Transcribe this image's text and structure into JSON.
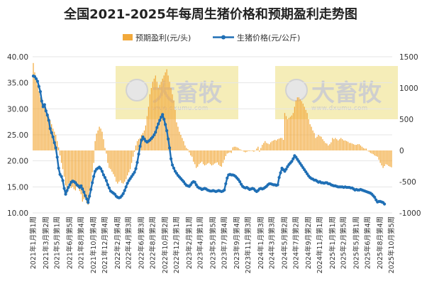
{
  "chart_data": {
    "type": "bar+line",
    "title": "全国2021-2025年每周生猪价格和预期盈利走势图",
    "colors": {
      "bar": "#F2A93B",
      "line": "#1F6FB5",
      "watermark_bg": "#F5EDB8",
      "grid": "#E6E6E6"
    },
    "watermarks": [
      {
        "name": "大畜牧",
        "url": "www.dxumu.com"
      },
      {
        "name": "大畜牧",
        "url": "www.dxumu.com"
      }
    ],
    "legend": {
      "position": "top-center"
    },
    "y_left": {
      "ylim": [
        10,
        40
      ],
      "ticks": [
        "10.00",
        "15.00",
        "20.00",
        "25.00",
        "30.00",
        "35.00",
        "40.00"
      ]
    },
    "y_right": {
      "ylim": [
        -1000,
        1500
      ],
      "ticks": [
        "-1000",
        "-500",
        "0",
        "500",
        "1000",
        "1500"
      ]
    },
    "x_tick_labels": [
      "2021年1月第1周",
      "2021年3月第2周",
      "2021年5月第1周",
      "2021年6月第5周",
      "2021年8月第4周",
      "2021年10月第4周",
      "2021年12月第4周",
      "2022年2月第4周",
      "2022年4月第3周",
      "2022年6月第3周",
      "2022年8月第2周",
      "2022年10月第2周",
      "2022年12月第1周",
      "2023年2月第1周",
      "2023年4月第1周",
      "2023年5月第5周",
      "2023年7月第4周",
      "2023年9月第4周",
      "2023年11月第3周",
      "2024年1月第3周",
      "2024年3月第3周",
      "2024年5月第2周",
      "2024年7月第2周",
      "2024年9月第2周",
      "2024年11月第1周",
      "2025年1月第1周",
      "2025年2月第5周",
      "2025年5月第1周",
      "2025年6月第4周",
      "2025年8月第4周",
      "2025年10月第5周"
    ],
    "series": [
      {
        "name": "预期盈利(元/头)",
        "type": "bar",
        "axis": "right",
        "values": [
          1400,
          1250,
          1150,
          1050,
          950,
          850,
          800,
          750,
          700,
          650,
          600,
          550,
          480,
          420,
          350,
          300,
          250,
          150,
          50,
          -80,
          -200,
          -300,
          -420,
          -560,
          -680,
          -530,
          -560,
          -600,
          -580,
          -620,
          -640,
          -580,
          -600,
          -650,
          -700,
          -820,
          -780,
          -760,
          -840,
          -870,
          -650,
          -500,
          -350,
          -200,
          150,
          270,
          320,
          380,
          350,
          300,
          180,
          40,
          -50,
          -200,
          -280,
          -300,
          -340,
          -380,
          -420,
          -500,
          -530,
          -500,
          -480,
          -520,
          -530,
          -500,
          -460,
          -400,
          -350,
          -300,
          -200,
          -100,
          -20,
          80,
          150,
          180,
          200,
          250,
          280,
          320,
          400,
          550,
          700,
          900,
          1000,
          1100,
          1150,
          1200,
          1100,
          1000,
          1050,
          1100,
          1150,
          1200,
          1250,
          1300,
          1200,
          1100,
          1000,
          900,
          800,
          650,
          450,
          380,
          300,
          250,
          200,
          150,
          80,
          40,
          20,
          -30,
          -80,
          -100,
          -180,
          -220,
          -280,
          -260,
          -220,
          -200,
          -180,
          -220,
          -240,
          -230,
          -210,
          -200,
          -220,
          -240,
          -230,
          -210,
          -200,
          -190,
          -230,
          -250,
          -260,
          -200,
          -150,
          -90,
          -50,
          -40,
          -30,
          -40,
          50,
          60,
          60,
          50,
          40,
          20,
          10,
          0,
          -20,
          -30,
          -20,
          -10,
          -10,
          0,
          -10,
          -20,
          0,
          30,
          60,
          -20,
          40,
          90,
          120,
          150,
          120,
          110,
          100,
          130,
          150,
          160,
          170,
          160,
          180,
          190,
          200,
          200,
          170,
          600,
          550,
          500,
          520,
          540,
          560,
          600,
          700,
          800,
          850,
          850,
          820,
          790,
          750,
          700,
          650,
          600,
          500,
          420,
          380,
          320,
          280,
          200,
          220,
          250,
          230,
          220,
          180,
          150,
          120,
          110,
          80,
          100,
          130,
          200,
          180,
          200,
          180,
          160,
          180,
          200,
          180,
          160,
          160,
          150,
          140,
          120,
          120,
          110,
          100,
          90,
          90,
          100,
          100,
          80,
          60,
          40,
          30,
          30,
          0,
          -20,
          -40,
          -50,
          -60,
          -80,
          -90,
          -100,
          -150,
          -200,
          -240,
          -280,
          -250,
          -220,
          -230,
          -250,
          -260,
          -270
        ]
      },
      {
        "name": "生猪价格(元/公斤)",
        "type": "line",
        "axis": "left",
        "values": [
          36.3,
          36.2,
          35.8,
          35.3,
          34.3,
          33.3,
          31.5,
          30.4,
          30.8,
          29.6,
          28.8,
          27.8,
          26.2,
          25.4,
          24.6,
          23.5,
          22.5,
          20.7,
          18.6,
          17.4,
          17.0,
          16.2,
          14.7,
          13.6,
          14.3,
          14.9,
          15.4,
          15.9,
          16.1,
          16.0,
          15.8,
          15.4,
          15.2,
          14.9,
          15.2,
          14.6,
          14.0,
          13.3,
          12.7,
          12.0,
          13.2,
          14.5,
          15.8,
          17.0,
          18.0,
          18.4,
          18.6,
          18.8,
          18.5,
          18.0,
          17.3,
          16.8,
          16.2,
          15.4,
          14.8,
          14.2,
          14.0,
          13.8,
          13.6,
          13.2,
          13.0,
          12.9,
          13.0,
          13.3,
          13.7,
          14.3,
          15.0,
          15.7,
          16.2,
          16.6,
          17.0,
          17.4,
          17.8,
          18.5,
          19.7,
          21.3,
          22.8,
          24.0,
          24.6,
          24.2,
          23.8,
          23.6,
          23.8,
          24.0,
          24.3,
          24.6,
          25.0,
          25.5,
          26.4,
          27.1,
          27.8,
          28.4,
          28.9,
          28.0,
          27.0,
          25.8,
          24.2,
          22.5,
          20.4,
          19.2,
          18.6,
          18.0,
          17.6,
          17.2,
          16.9,
          16.6,
          16.3,
          16.0,
          15.6,
          15.3,
          15.2,
          15.1,
          15.4,
          15.8,
          16.0,
          15.9,
          15.4,
          15.0,
          14.8,
          14.7,
          14.5,
          14.6,
          14.7,
          14.6,
          14.4,
          14.3,
          14.2,
          14.2,
          14.3,
          14.2,
          14.1,
          14.2,
          14.3,
          14.2,
          14.1,
          14.2,
          14.4,
          15.6,
          16.7,
          17.3,
          17.4,
          17.3,
          17.3,
          17.2,
          17.0,
          16.7,
          16.4,
          16.0,
          15.5,
          15.1,
          14.9,
          14.8,
          14.9,
          14.7,
          14.5,
          14.6,
          14.7,
          14.6,
          14.3,
          14.1,
          14.3,
          14.6,
          14.7,
          14.6,
          14.7,
          14.9,
          15.1,
          15.4,
          15.6,
          15.6,
          15.5,
          15.4,
          15.4,
          15.3,
          15.4,
          16.8,
          17.7,
          18.6,
          18.3,
          18.0,
          18.4,
          18.9,
          19.3,
          19.6,
          19.9,
          20.4,
          21.0,
          20.7,
          20.3,
          19.9,
          19.5,
          19.1,
          18.7,
          18.3,
          17.9,
          17.5,
          17.1,
          16.8,
          16.6,
          16.5,
          16.3,
          16.3,
          16.1,
          15.9,
          16.0,
          15.8,
          15.8,
          15.7,
          15.8,
          15.8,
          15.6,
          15.6,
          15.4,
          15.3,
          15.2,
          15.2,
          15.1,
          15.0,
          15.0,
          15.0,
          15.0,
          14.9,
          15.0,
          14.9,
          14.9,
          14.9,
          14.8,
          14.8,
          14.6,
          14.4,
          14.5,
          14.4,
          14.4,
          14.5,
          14.4,
          14.3,
          14.2,
          14.1,
          14.0,
          13.9,
          13.8,
          13.6,
          13.3,
          13.0,
          12.5,
          12.1,
          12.2,
          12.2,
          12.1,
          12.0,
          11.7
        ]
      }
    ]
  }
}
